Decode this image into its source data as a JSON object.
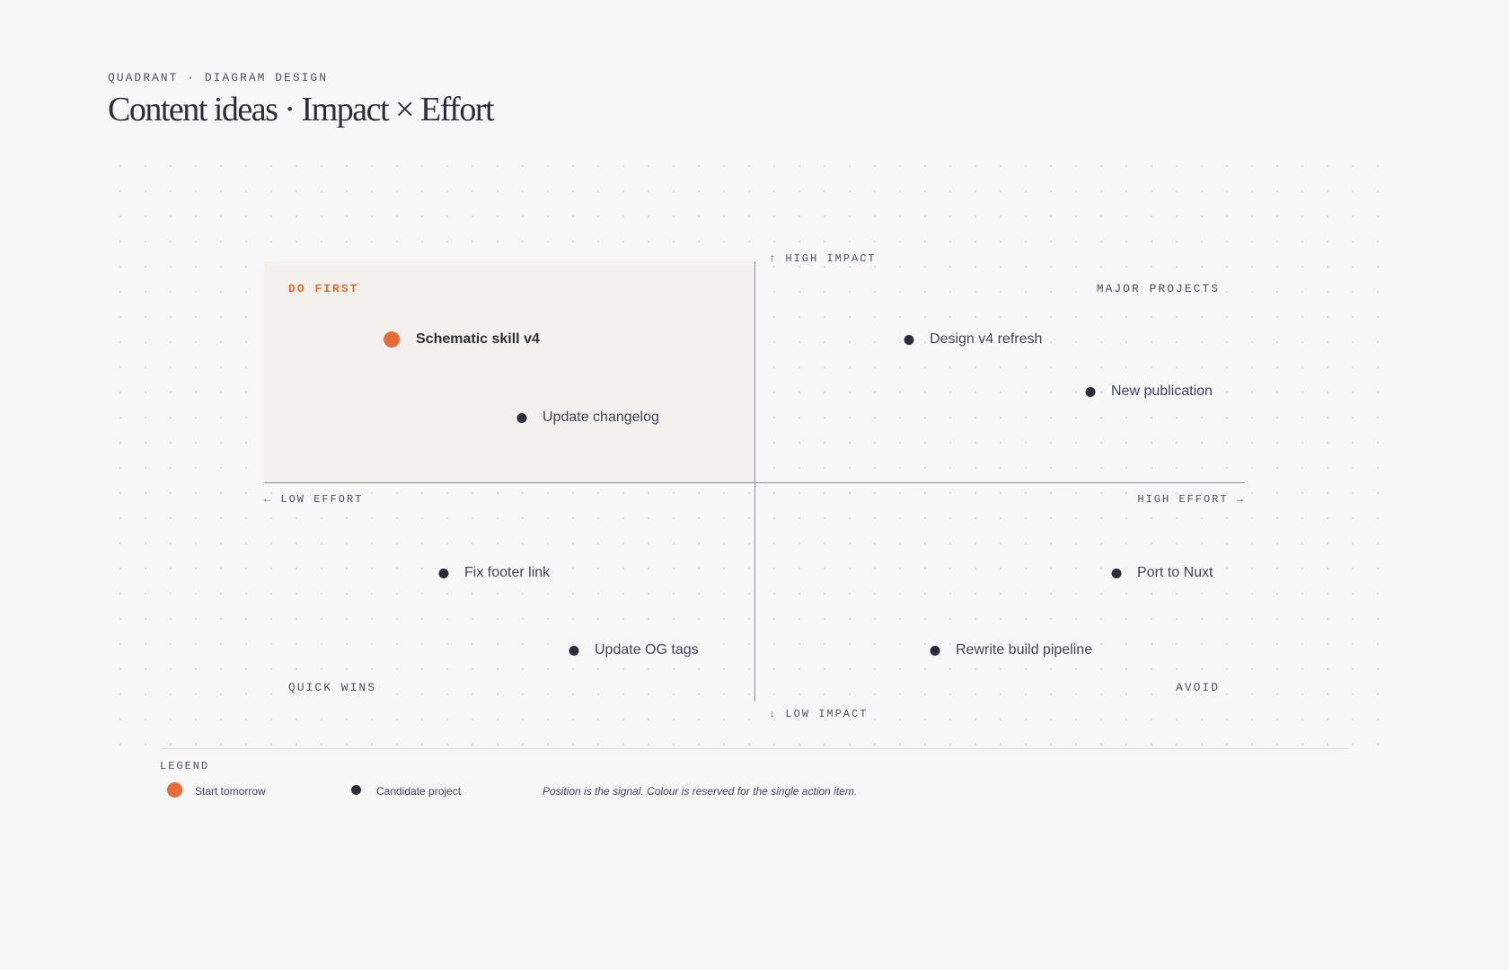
{
  "header": {
    "eyebrow": "QUADRANT · DIAGRAM DESIGN",
    "title": "Content ideas · Impact × Effort"
  },
  "axes": {
    "top": "↑ HIGH IMPACT",
    "bottom": "↓ LOW IMPACT",
    "left": "← LOW EFFORT",
    "right": "HIGH EFFORT →"
  },
  "quadrants": {
    "top_left": "DO FIRST",
    "top_right": "MAJOR PROJECTS",
    "bottom_left": "QUICK WINS",
    "bottom_right": "AVOID"
  },
  "items": [
    "Schematic skill v4",
    "Update changelog",
    "Design v4 refresh",
    "New publication",
    "Fix footer link",
    "Update OG tags",
    "Port to Nuxt",
    "Rewrite build pipeline"
  ],
  "legend": {
    "title": "LEGEND",
    "entries": [
      "Start tomorrow",
      "Candidate project"
    ],
    "note": "Position is the signal. Colour is reserved for the single action item."
  }
}
